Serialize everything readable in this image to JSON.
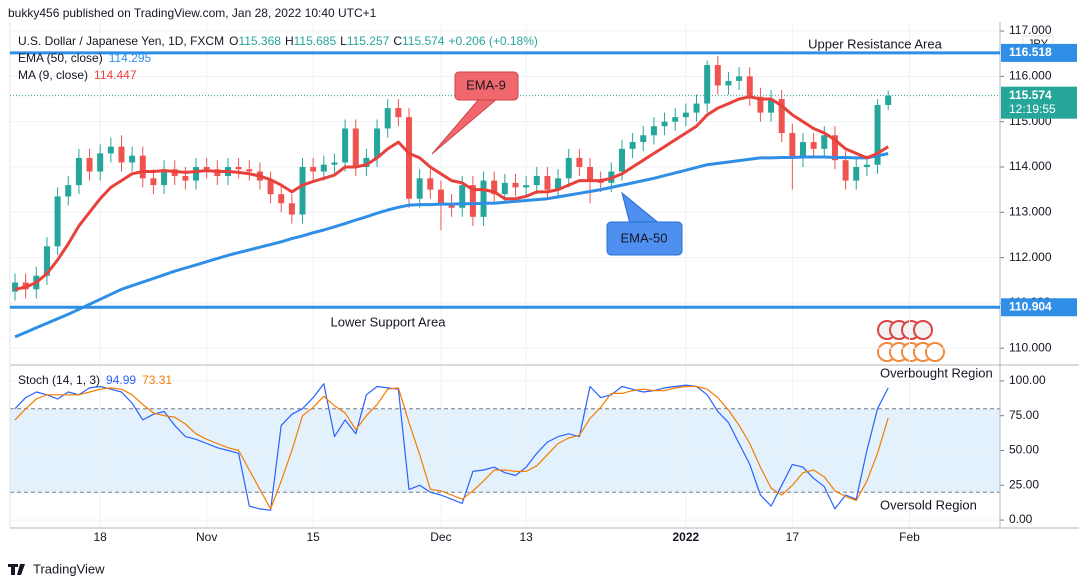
{
  "header": {
    "published": "bukky456 published on TradingView.com, Jan 28, 2022 10:40 UTC+1",
    "brand": "TradingView"
  },
  "chart_data": [
    {
      "type": "candlestick",
      "title": "U.S. Dollar / Japanese Yen, 1D, FXCM",
      "ohlc_labels": [
        "O",
        "H",
        "L",
        "C"
      ],
      "change": "+0.206 (+0.18%)",
      "unit": "JPY",
      "up_color": "#26a69a",
      "down_color": "#ef5350",
      "open": [
        111.25,
        111.45,
        111.3,
        111.6,
        112.25,
        113.35,
        113.6,
        114.2,
        113.9,
        114.3,
        114.45,
        114.1,
        114.25,
        113.75,
        113.6,
        113.95,
        113.8,
        113.7,
        114.0,
        113.95,
        113.8,
        114.0,
        113.95,
        113.9,
        113.7,
        113.4,
        113.2,
        112.95,
        114.0,
        113.9,
        114.05,
        114.1,
        114.85,
        114.0,
        114.2,
        114.85,
        115.3,
        115.1,
        113.3,
        113.75,
        113.5,
        113.2,
        113.1,
        113.6,
        112.9,
        113.7,
        113.4,
        113.65,
        113.55,
        113.6,
        113.8,
        113.5,
        113.75,
        114.2,
        114.0,
        113.7,
        113.65,
        113.9,
        114.4,
        114.55,
        114.7,
        114.9,
        115.0,
        115.1,
        115.2,
        115.4,
        116.25,
        115.8,
        115.9,
        116.0,
        115.55,
        115.2,
        115.5,
        114.75,
        114.2,
        114.55,
        114.4,
        114.7,
        114.15,
        113.7,
        114.0,
        114.05,
        115.368
      ],
      "high": [
        111.65,
        111.65,
        111.8,
        112.45,
        113.55,
        113.8,
        114.4,
        114.4,
        114.5,
        114.65,
        114.7,
        114.45,
        114.45,
        113.95,
        114.15,
        114.15,
        114.0,
        114.2,
        114.2,
        114.15,
        114.2,
        114.2,
        114.15,
        114.1,
        113.9,
        113.6,
        113.4,
        114.2,
        114.2,
        114.25,
        114.3,
        115.05,
        115.05,
        114.4,
        115.05,
        115.5,
        115.5,
        115.3,
        113.95,
        113.95,
        113.7,
        113.4,
        113.8,
        113.8,
        113.9,
        113.9,
        113.85,
        113.85,
        113.8,
        114.0,
        114.0,
        113.95,
        114.4,
        114.4,
        114.2,
        113.9,
        114.1,
        114.6,
        114.75,
        114.9,
        115.1,
        115.2,
        115.3,
        115.4,
        115.6,
        116.35,
        116.45,
        116.1,
        116.2,
        116.2,
        115.75,
        115.7,
        115.7,
        114.95,
        114.75,
        114.75,
        114.9,
        114.9,
        114.35,
        114.2,
        114.25,
        115.5,
        115.685
      ],
      "low": [
        111.05,
        111.1,
        111.1,
        111.4,
        112.05,
        113.15,
        113.4,
        113.7,
        113.7,
        114.1,
        113.9,
        113.9,
        113.55,
        113.4,
        113.4,
        113.6,
        113.5,
        113.5,
        113.75,
        113.6,
        113.6,
        113.75,
        113.7,
        113.5,
        113.2,
        113.0,
        112.75,
        112.75,
        113.7,
        113.7,
        113.85,
        113.9,
        113.8,
        113.8,
        114.0,
        114.65,
        114.9,
        113.1,
        113.1,
        113.3,
        112.6,
        112.9,
        112.9,
        112.7,
        112.7,
        113.2,
        113.2,
        113.35,
        113.35,
        113.4,
        113.3,
        113.3,
        113.55,
        113.8,
        113.2,
        113.45,
        113.45,
        113.7,
        114.2,
        114.35,
        114.5,
        114.7,
        114.8,
        114.9,
        115.0,
        115.2,
        115.6,
        115.6,
        115.7,
        115.35,
        115.0,
        115.0,
        114.55,
        113.5,
        114.0,
        114.2,
        114.2,
        113.95,
        113.5,
        113.5,
        113.8,
        113.85,
        115.257
      ],
      "close": [
        111.45,
        111.3,
        111.6,
        112.25,
        113.35,
        113.6,
        114.2,
        113.9,
        114.3,
        114.45,
        114.1,
        114.25,
        113.75,
        113.6,
        113.95,
        113.8,
        113.7,
        114.0,
        113.95,
        113.8,
        114.0,
        113.95,
        113.9,
        113.7,
        113.4,
        113.2,
        112.95,
        114.0,
        113.9,
        114.05,
        114.1,
        114.85,
        114.0,
        114.2,
        114.85,
        115.3,
        115.1,
        113.3,
        113.75,
        113.5,
        113.2,
        113.1,
        113.6,
        112.9,
        113.7,
        113.4,
        113.65,
        113.55,
        113.6,
        113.8,
        113.5,
        113.75,
        114.2,
        114.0,
        113.7,
        113.65,
        113.9,
        114.4,
        114.55,
        114.7,
        114.9,
        115.0,
        115.1,
        115.2,
        115.4,
        116.25,
        115.8,
        115.9,
        116.0,
        115.55,
        115.2,
        115.5,
        114.75,
        114.2,
        114.55,
        114.4,
        114.7,
        114.15,
        113.7,
        114.0,
        114.05,
        115.368,
        115.574
      ],
      "series": [
        {
          "name": "EMA (50, close)",
          "color": "#2f8fe6",
          "values": [
            110.25,
            110.35,
            110.45,
            110.55,
            110.65,
            110.75,
            110.86,
            110.97,
            111.08,
            111.19,
            111.3,
            111.38,
            111.46,
            111.54,
            111.62,
            111.7,
            111.77,
            111.84,
            111.91,
            111.98,
            112.05,
            112.11,
            112.17,
            112.23,
            112.29,
            112.35,
            112.42,
            112.48,
            112.55,
            112.61,
            112.68,
            112.75,
            112.83,
            112.9,
            112.98,
            113.05,
            113.11,
            113.16,
            113.17,
            113.17,
            113.18,
            113.18,
            113.19,
            113.19,
            113.2,
            113.2,
            113.22,
            113.24,
            113.26,
            113.28,
            113.3,
            113.34,
            113.38,
            113.42,
            113.46,
            113.5,
            113.55,
            113.6,
            113.65,
            113.7,
            113.75,
            113.81,
            113.87,
            113.93,
            113.99,
            114.05,
            114.08,
            114.11,
            114.14,
            114.17,
            114.2,
            114.2,
            114.21,
            114.21,
            114.22,
            114.22,
            114.22,
            114.21,
            114.21,
            114.2,
            114.2,
            114.25,
            114.295
          ]
        },
        {
          "name": "MA (9, close)",
          "color": "#e8413c",
          "values": [
            111.3,
            111.35,
            111.45,
            111.65,
            111.95,
            112.3,
            112.7,
            113.0,
            113.3,
            113.55,
            113.7,
            113.85,
            113.9,
            113.9,
            113.92,
            113.9,
            113.88,
            113.9,
            113.92,
            113.9,
            113.9,
            113.88,
            113.85,
            113.8,
            113.72,
            113.6,
            113.45,
            113.6,
            113.68,
            113.75,
            113.82,
            114.0,
            114.0,
            114.05,
            114.2,
            114.4,
            114.55,
            114.3,
            114.2,
            114.0,
            113.85,
            113.7,
            113.65,
            113.5,
            113.5,
            113.45,
            113.3,
            113.3,
            113.35,
            113.45,
            113.45,
            113.5,
            113.6,
            113.7,
            113.7,
            113.7,
            113.75,
            113.85,
            114.0,
            114.15,
            114.3,
            114.45,
            114.6,
            114.75,
            114.9,
            115.15,
            115.3,
            115.4,
            115.5,
            115.55,
            115.5,
            115.5,
            115.35,
            115.15,
            115.0,
            114.85,
            114.75,
            114.6,
            114.4,
            114.3,
            114.2,
            114.3,
            114.447
          ]
        }
      ],
      "levels": [
        {
          "name": "Upper Resistance Area",
          "value": 116.518,
          "color": "#2f8fe6"
        },
        {
          "name": "Lower Support Area",
          "value": 110.904,
          "color": "#2f8fe6"
        }
      ],
      "countdown": "12:19:55",
      "annotations": [
        {
          "text": "EMA-9",
          "color": "#f0686d"
        },
        {
          "text": "EMA-50",
          "color": "#4f8ff0"
        }
      ],
      "ylim": [
        109.63,
        117.2
      ],
      "yticks": [
        {
          "value": 110,
          "label": "110.000"
        },
        {
          "value": 111,
          "label": "111.000"
        },
        {
          "value": 112,
          "label": "112.000"
        },
        {
          "value": 113,
          "label": "113.000"
        },
        {
          "value": 114,
          "label": "114.000"
        },
        {
          "value": 115,
          "label": "115.000"
        },
        {
          "value": 116,
          "label": "116.000"
        },
        {
          "value": 117,
          "label": "117.000"
        }
      ],
      "xlim": [
        -0.47,
        92.5
      ],
      "xticks": [
        {
          "value": 8,
          "label": "18"
        },
        {
          "value": 18,
          "label": "Nov"
        },
        {
          "value": 28,
          "label": "15"
        },
        {
          "value": 40,
          "label": "Dec"
        },
        {
          "value": 48,
          "label": "13"
        },
        {
          "value": 63,
          "label": "2022"
        },
        {
          "value": 73,
          "label": "17"
        },
        {
          "value": 84,
          "label": "Feb"
        }
      ],
      "grid": true
    },
    {
      "type": "line",
      "title": "Stoch (14, 1, 3)",
      "series": [
        {
          "name": "%K",
          "color": "#2962ff",
          "values": [
            80,
            88,
            92,
            90,
            87,
            92,
            90,
            95,
            96,
            94,
            92,
            84,
            72,
            76,
            78,
            68,
            60,
            58,
            55,
            52,
            50,
            48,
            10,
            8,
            7,
            68,
            76,
            80,
            88,
            98,
            60,
            72,
            62,
            90,
            96,
            95,
            94,
            22,
            25,
            20,
            18,
            15,
            12,
            35,
            36,
            38,
            34,
            32,
            38,
            48,
            56,
            60,
            62,
            60,
            96,
            88,
            90,
            96,
            94,
            92,
            93,
            95,
            96,
            97,
            96,
            90,
            78,
            70,
            55,
            40,
            18,
            10,
            25,
            40,
            38,
            30,
            24,
            8,
            18,
            15,
            50,
            80,
            94.99
          ]
        },
        {
          "name": "%D",
          "color": "#f57c00",
          "values": [
            72,
            80,
            87,
            90,
            90,
            90,
            90,
            92,
            94,
            95,
            94,
            90,
            83,
            77,
            75,
            74,
            69,
            62,
            58,
            55,
            52,
            50,
            36,
            22,
            8,
            28,
            50,
            75,
            81,
            89,
            82,
            77,
            65,
            75,
            83,
            94,
            95,
            70,
            47,
            22,
            21,
            18,
            15,
            21,
            28,
            36,
            36,
            35,
            35,
            39,
            47,
            55,
            59,
            61,
            73,
            81,
            91,
            91,
            93,
            94,
            93,
            93,
            95,
            96,
            96,
            94,
            88,
            79,
            68,
            55,
            38,
            23,
            18,
            25,
            34,
            36,
            31,
            21,
            17,
            14,
            28,
            48,
            73.31
          ]
        }
      ],
      "band": [
        20,
        80
      ],
      "band_color": "#e3f1fc",
      "annotations": [
        {
          "text": "Overbought Region"
        },
        {
          "text": "Oversold Region"
        }
      ],
      "ylim": [
        -5.7,
        110.7
      ],
      "yticks": [
        {
          "value": 0,
          "label": "0.00"
        },
        {
          "value": 25,
          "label": "25.00"
        },
        {
          "value": 50,
          "label": "50.00"
        },
        {
          "value": 75,
          "label": "75.00"
        },
        {
          "value": 100,
          "label": "100.00"
        }
      ],
      "grid": true
    }
  ]
}
